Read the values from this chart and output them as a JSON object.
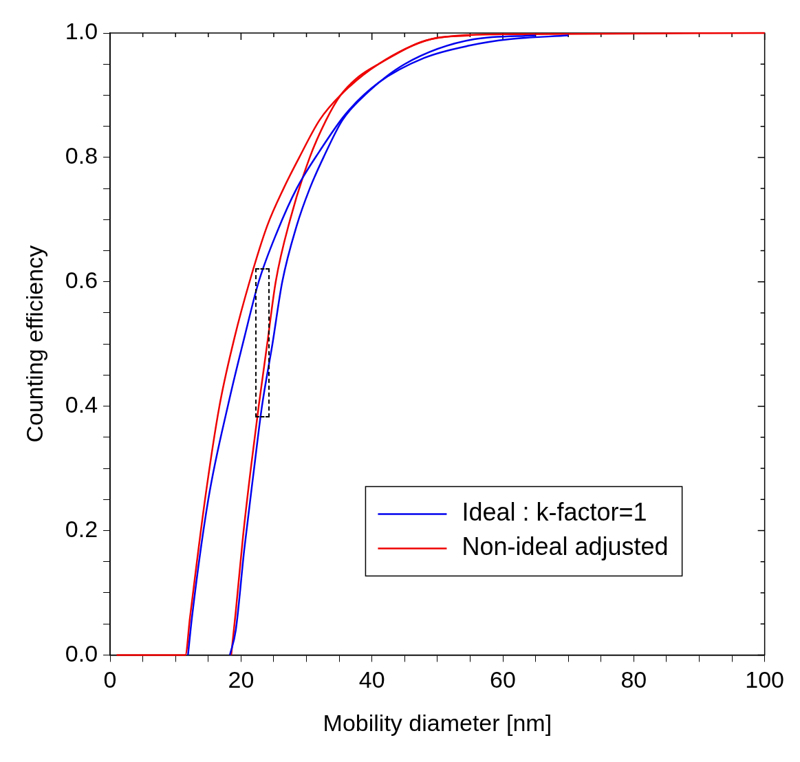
{
  "chart_data": {
    "type": "line",
    "xlabel": "Mobility diameter [nm]",
    "ylabel": "Counting efficiency",
    "xlim": [
      0,
      100
    ],
    "ylim": [
      0,
      1.0
    ],
    "xticks": [
      0,
      {
        "value": 5,
        "label": null
      },
      {
        "value": 10,
        "label": null
      },
      {
        "value": 15,
        "label": null
      },
      20,
      {
        "value": 25,
        "label": null
      },
      {
        "value": 30,
        "label": null
      },
      {
        "value": 35,
        "label": null
      },
      40,
      {
        "value": 45,
        "label": null
      },
      {
        "value": 50,
        "label": null
      },
      {
        "value": 55,
        "label": null
      },
      60,
      {
        "value": 65,
        "label": null
      },
      {
        "value": 70,
        "label": null
      },
      {
        "value": 75,
        "label": null
      },
      80,
      {
        "value": 85,
        "label": null
      },
      {
        "value": 90,
        "label": null
      },
      {
        "value": 95,
        "label": null
      },
      100
    ],
    "yticks": [
      {
        "value": 0,
        "label": "0.0"
      },
      {
        "value": 0.05,
        "label": null
      },
      {
        "value": 0.1,
        "label": null
      },
      {
        "value": 0.15,
        "label": null
      },
      {
        "value": 0.2,
        "label": "0.2"
      },
      {
        "value": 0.25,
        "label": null
      },
      {
        "value": 0.3,
        "label": null
      },
      {
        "value": 0.35,
        "label": null
      },
      {
        "value": 0.4,
        "label": "0.4"
      },
      {
        "value": 0.45,
        "label": null
      },
      {
        "value": 0.5,
        "label": null
      },
      {
        "value": 0.55,
        "label": null
      },
      {
        "value": 0.6,
        "label": "0.6"
      },
      {
        "value": 0.65,
        "label": null
      },
      {
        "value": 0.7,
        "label": null
      },
      {
        "value": 0.75,
        "label": null
      },
      {
        "value": 0.8,
        "label": "0.8"
      },
      {
        "value": 0.85,
        "label": null
      },
      {
        "value": 0.9,
        "label": null
      },
      {
        "value": 0.95,
        "label": null
      },
      {
        "value": 1.0,
        "label": "1.0"
      }
    ],
    "grid": false,
    "legend": "bottom right",
    "marker": "none",
    "line_style": "solid",
    "series": [
      {
        "name": "Ideal : k-factor=1",
        "color": "#0000ee",
        "x": [
          11.9,
          12.5,
          15,
          18.2,
          20.5,
          22.7,
          25.5,
          28.5,
          32,
          36,
          41,
          48,
          55,
          61,
          70
        ],
        "values": [
          0,
          0.06,
          0.25,
          0.41,
          0.51,
          0.6,
          0.68,
          0.75,
          0.81,
          0.87,
          0.92,
          0.96,
          0.98,
          0.99,
          0.996
        ]
      },
      {
        "color": "#0000ee",
        "x": [
          18.3,
          19.2,
          20.5,
          22,
          23.2,
          24.8,
          26.3,
          28.5,
          30.5,
          32.6,
          35.5,
          38.9,
          45,
          55.6,
          65
        ],
        "values": [
          0,
          0.04,
          0.17,
          0.3,
          0.4,
          0.5,
          0.6,
          0.69,
          0.75,
          0.8,
          0.86,
          0.9,
          0.95,
          0.99,
          0.996
        ]
      },
      {
        "name": "Non-ideal adjusted",
        "color": "#ee0000",
        "x": [
          1,
          11.5,
          12.2,
          14.5,
          16.7,
          19,
          21.3,
          24,
          26.5,
          28.9,
          32,
          35.2,
          41,
          49,
          55
        ],
        "values": [
          0,
          0,
          0.06,
          0.25,
          0.4,
          0.51,
          0.6,
          0.69,
          0.75,
          0.8,
          0.86,
          0.9,
          0.95,
          0.99,
          0.996
        ]
      },
      {
        "color": "#ee0000",
        "x": [
          18.5,
          19.2,
          20.3,
          21.5,
          22.7,
          24,
          25.3,
          27.5,
          30.5,
          33,
          35.2,
          38,
          41,
          49,
          60,
          100
        ],
        "values": [
          0,
          0.07,
          0.19,
          0.3,
          0.4,
          0.5,
          0.6,
          0.7,
          0.8,
          0.86,
          0.9,
          0.93,
          0.95,
          0.99,
          0.998,
          1.0
        ]
      }
    ]
  }
}
